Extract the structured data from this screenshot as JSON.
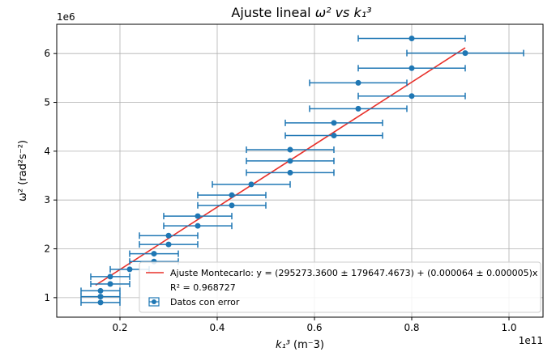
{
  "chart_data": {
    "type": "scatter",
    "title_main": "Ajuste lineal ",
    "title_math": "ω² vs k₁³",
    "xlabel_math": "k₁³",
    "xlabel_unit": "(m⁻3)",
    "ylabel": "ω² (rad²s⁻²)",
    "x_offset_text": "1e11",
    "y_offset_text": "1e6",
    "xlim": [
      0.07,
      1.07
    ],
    "ylim": [
      0.6,
      6.6
    ],
    "x_ticks": [
      0.2,
      0.4,
      0.6,
      0.8,
      1.0
    ],
    "x_tick_labels": [
      "0.2",
      "0.4",
      "0.6",
      "0.8",
      "1.0"
    ],
    "y_ticks": [
      1,
      2,
      3,
      4,
      5,
      6
    ],
    "y_tick_labels": [
      "1",
      "2",
      "3",
      "4",
      "5",
      "6"
    ],
    "grid": true,
    "legend_position": "lower-right",
    "series": [
      {
        "name": "Datos con error",
        "kind": "errorbar",
        "color": "#1f77b4",
        "points": [
          {
            "x": 0.16,
            "y": 0.9,
            "xerr": 0.04
          },
          {
            "x": 0.16,
            "y": 1.02,
            "xerr": 0.04
          },
          {
            "x": 0.16,
            "y": 1.14,
            "xerr": 0.04
          },
          {
            "x": 0.18,
            "y": 1.28,
            "xerr": 0.04
          },
          {
            "x": 0.18,
            "y": 1.43,
            "xerr": 0.04
          },
          {
            "x": 0.22,
            "y": 1.58,
            "xerr": 0.04
          },
          {
            "x": 0.27,
            "y": 1.74,
            "xerr": 0.05
          },
          {
            "x": 0.27,
            "y": 1.9,
            "xerr": 0.05
          },
          {
            "x": 0.3,
            "y": 2.09,
            "xerr": 0.06
          },
          {
            "x": 0.3,
            "y": 2.27,
            "xerr": 0.06
          },
          {
            "x": 0.36,
            "y": 2.47,
            "xerr": 0.07
          },
          {
            "x": 0.36,
            "y": 2.67,
            "xerr": 0.07
          },
          {
            "x": 0.43,
            "y": 2.89,
            "xerr": 0.07
          },
          {
            "x": 0.43,
            "y": 3.1,
            "xerr": 0.07
          },
          {
            "x": 0.47,
            "y": 3.32,
            "xerr": 0.08
          },
          {
            "x": 0.55,
            "y": 3.56,
            "xerr": 0.09
          },
          {
            "x": 0.55,
            "y": 3.8,
            "xerr": 0.09
          },
          {
            "x": 0.55,
            "y": 4.03,
            "xerr": 0.09
          },
          {
            "x": 0.64,
            "y": 4.32,
            "xerr": 0.1
          },
          {
            "x": 0.64,
            "y": 4.58,
            "xerr": 0.1
          },
          {
            "x": 0.69,
            "y": 4.87,
            "xerr": 0.1
          },
          {
            "x": 0.8,
            "y": 5.13,
            "xerr": 0.11
          },
          {
            "x": 0.69,
            "y": 5.4,
            "xerr": 0.1
          },
          {
            "x": 0.8,
            "y": 5.7,
            "xerr": 0.11
          },
          {
            "x": 0.91,
            "y": 6.01,
            "xerr": 0.12
          },
          {
            "x": 0.8,
            "y": 6.31,
            "xerr": 0.11
          }
        ]
      },
      {
        "name": "fit",
        "kind": "line",
        "color": "#e8302a",
        "points": [
          {
            "x": 0.15,
            "y": 1.255
          },
          {
            "x": 0.91,
            "y": 6.118
          }
        ]
      }
    ],
    "legend": [
      {
        "kind": "line",
        "color": "#e8302a",
        "label": "Ajuste Montecarlo: y = (295273.3600 ± 179647.4673) + (0.000064 ± 0.000005)x"
      },
      {
        "kind": "text",
        "label": "R² = 0.968727"
      },
      {
        "kind": "errorbar",
        "color": "#1f77b4",
        "label": "Datos con error"
      }
    ]
  }
}
